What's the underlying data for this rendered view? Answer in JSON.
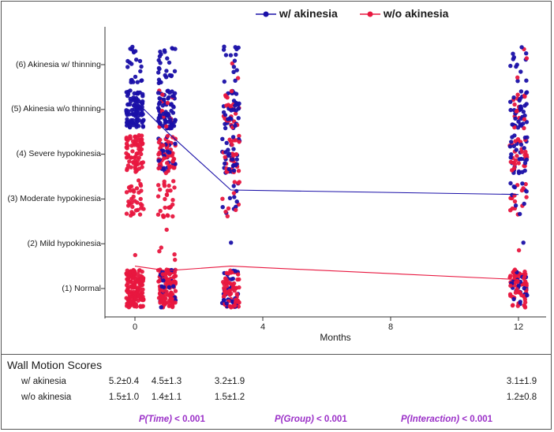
{
  "chart_data": {
    "type": "scatter",
    "subtype": "jittered strip plot with mean lines",
    "xlabel": "Months",
    "x_ticks": [
      0,
      4,
      8,
      12
    ],
    "xlim": [
      -1,
      13
    ],
    "y_categories": [
      {
        "value": 1,
        "label": "(1) Normal"
      },
      {
        "value": 2,
        "label": "(2) Mild hypokinesia"
      },
      {
        "value": 3,
        "label": "(3) Moderate hypokinesia"
      },
      {
        "value": 4,
        "label": "(4) Severe hypokinesia"
      },
      {
        "value": 5,
        "label": "(5) Akinesia w/o thinning"
      },
      {
        "value": 6,
        "label": "(6) Akinesia w/ thinning"
      }
    ],
    "ylim": [
      0.5,
      6.5
    ],
    "timepoints": [
      0,
      1,
      3,
      12
    ],
    "series": [
      {
        "name": "w/ akinesia",
        "color": "#1a10a8",
        "mean_x": [
          0,
          1,
          3,
          12
        ],
        "mean_y": [
          5.2,
          4.5,
          3.2,
          3.1
        ]
      },
      {
        "name": "w/o akinesia",
        "color": "#e8173f",
        "mean_x": [
          0,
          1,
          3,
          12
        ],
        "mean_y": [
          1.5,
          1.4,
          1.5,
          1.2
        ]
      }
    ]
  },
  "table": {
    "title": "Wall Motion Scores",
    "rows": [
      {
        "label": "w/ akinesia",
        "values": [
          "5.2±0.4",
          "4.5±1.3",
          "3.2±1.9",
          "3.1±1.9"
        ]
      },
      {
        "label": "w/o akinesia",
        "values": [
          "1.5±1.0",
          "1.4±1.1",
          "1.5±1.2",
          "1.2±0.8"
        ]
      }
    ]
  },
  "pvalues": [
    {
      "name": "P(Time)",
      "text": " < 0.001"
    },
    {
      "name": "P(Group)",
      "text": " < 0.001"
    },
    {
      "name": "P(Interaction)",
      "text": " < 0.001"
    }
  ]
}
